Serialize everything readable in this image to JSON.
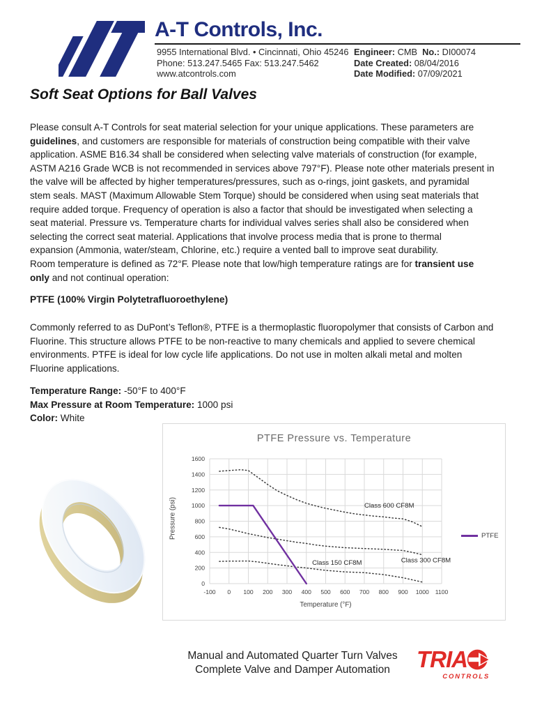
{
  "header": {
    "company": "A-T Controls, Inc.",
    "logo_color": "#1f2e7f",
    "address_lines": [
      [
        [
          "9955 International Blvd. • Cincinnati, Ohio 45246",
          0
        ]
      ],
      [
        [
          "Phone: 513.247.5465 Fax: 513.247.5462",
          0
        ]
      ],
      [
        [
          "www.atcontrols.com",
          0
        ]
      ]
    ],
    "meta_lines": [
      [
        [
          "Engineer:",
          1
        ],
        [
          " CMB  ",
          0
        ],
        [
          "No.:",
          1
        ],
        [
          " DI00074",
          0
        ]
      ],
      [
        [
          "Date Created:",
          1
        ],
        [
          " 08/04/2016",
          0
        ]
      ],
      [
        [
          "Date Modified:",
          1
        ],
        [
          " 07/09/2021",
          0
        ]
      ]
    ]
  },
  "doc": {
    "title": "Soft Seat Options for Ball Valves",
    "intro_lines": [
      [
        [
          "Please consult A-T Controls for seat material selection for your unique applications. These parameters are",
          0
        ]
      ],
      [
        [
          "guidelines",
          1
        ],
        [
          ", and customers are responsible for materials of construction being compatible with their valve",
          0
        ]
      ],
      [
        [
          "application. ASME B16.34 shall be considered when selecting valve materials of construction (for example,",
          0
        ]
      ],
      [
        [
          "ASTM A216 Grade WCB is not recommended in services above 797°F). Please note other materials present in",
          0
        ]
      ],
      [
        [
          "the valve will be affected by higher temperatures/pressures, such as o-rings, joint gaskets, and pyramidal",
          0
        ]
      ],
      [
        [
          "stem seals. MAST (Maximum Allowable Stem Torque) should be considered when using seat materials that",
          0
        ]
      ],
      [
        [
          "require added torque. Frequency of operation is also a factor that should be investigated when selecting a",
          0
        ]
      ],
      [
        [
          "seat material. Pressure vs. Temperature charts for individual valves series shall also be considered when",
          0
        ]
      ],
      [
        [
          "selecting the correct seat material. Applications that involve process media that is prone to thermal",
          0
        ]
      ],
      [
        [
          "expansion (Ammonia, water/steam, Chlorine, etc.) require a vented ball to improve seat durability.",
          0
        ]
      ],
      [
        [
          "Room temperature is defined as 72°F. Please note that low/high temperature ratings are for ",
          0
        ],
        [
          "transient use",
          1
        ]
      ],
      [
        [
          "only",
          1
        ],
        [
          " and not continual operation:",
          0
        ]
      ]
    ],
    "section_heading": "PTFE (100% Virgin Polytetrafluoroethylene)",
    "ptfe_lines": [
      [
        [
          "Commonly referred to as DuPont’s Teflon®, PTFE is a thermoplastic fluoropolymer that consists of Carbon and",
          0
        ]
      ],
      [
        [
          "Fluorine. This structure allows PTFE to be non-reactive to many chemicals and applied to severe chemical",
          0
        ]
      ],
      [
        [
          "environments. PTFE is ideal for low cycle life applications. Do not use in molten alkali metal and molten",
          0
        ]
      ],
      [
        [
          "Fluorine applications.",
          0
        ]
      ]
    ],
    "spec_lines": [
      [
        [
          "Temperature Range:",
          1
        ],
        [
          " -50°F to 400°F",
          0
        ]
      ],
      [
        [
          "Max Pressure at Room Temperature:",
          1
        ],
        [
          " 1000 psi",
          0
        ]
      ],
      [
        [
          "Color:",
          1
        ],
        [
          " White",
          0
        ]
      ]
    ]
  },
  "chart_data": {
    "type": "line",
    "title": "PTFE Pressure vs. Temperature",
    "xlabel": "Temperature (°F)",
    "ylabel": "Pressure (psi)",
    "xlim": [
      -100,
      1100
    ],
    "ylim": [
      0,
      1600
    ],
    "grid": true,
    "legend_position": "right-outside",
    "xticks": [
      -100,
      0,
      100,
      200,
      300,
      400,
      500,
      600,
      700,
      800,
      900,
      1000,
      1100
    ],
    "yticks": [
      0,
      200,
      400,
      600,
      800,
      1000,
      1200,
      1400,
      1600
    ],
    "series": [
      {
        "name": "Class 600 CF8M",
        "style": "dotted",
        "color": "#3a3a3a",
        "points": [
          [
            -50,
            1440
          ],
          [
            0,
            1450
          ],
          [
            60,
            1460
          ],
          [
            100,
            1450
          ],
          [
            150,
            1360
          ],
          [
            200,
            1270
          ],
          [
            250,
            1190
          ],
          [
            300,
            1130
          ],
          [
            350,
            1075
          ],
          [
            400,
            1030
          ],
          [
            450,
            995
          ],
          [
            500,
            965
          ],
          [
            550,
            940
          ],
          [
            600,
            915
          ],
          [
            650,
            895
          ],
          [
            700,
            880
          ],
          [
            750,
            865
          ],
          [
            800,
            855
          ],
          [
            850,
            840
          ],
          [
            900,
            830
          ],
          [
            950,
            790
          ],
          [
            1000,
            730
          ]
        ]
      },
      {
        "name": "Class 300 CF8M",
        "style": "dotted",
        "color": "#3a3a3a",
        "points": [
          [
            -50,
            720
          ],
          [
            0,
            700
          ],
          [
            50,
            670
          ],
          [
            100,
            640
          ],
          [
            150,
            615
          ],
          [
            200,
            590
          ],
          [
            250,
            570
          ],
          [
            300,
            550
          ],
          [
            350,
            530
          ],
          [
            400,
            515
          ],
          [
            450,
            495
          ],
          [
            500,
            480
          ],
          [
            550,
            470
          ],
          [
            600,
            460
          ],
          [
            700,
            450
          ],
          [
            800,
            440
          ],
          [
            900,
            425
          ],
          [
            950,
            400
          ],
          [
            1000,
            370
          ]
        ]
      },
      {
        "name": "Class 150 CF8M",
        "style": "dotted",
        "color": "#3a3a3a",
        "points": [
          [
            -50,
            285
          ],
          [
            0,
            288
          ],
          [
            100,
            290
          ],
          [
            150,
            278
          ],
          [
            200,
            260
          ],
          [
            250,
            243
          ],
          [
            300,
            228
          ],
          [
            350,
            213
          ],
          [
            400,
            200
          ],
          [
            450,
            185
          ],
          [
            500,
            170
          ],
          [
            550,
            160
          ],
          [
            600,
            150
          ],
          [
            700,
            140
          ],
          [
            800,
            115
          ],
          [
            900,
            75
          ],
          [
            1000,
            20
          ]
        ]
      },
      {
        "name": "PTFE",
        "style": "solid",
        "color": "#7030a0",
        "points": [
          [
            -50,
            1000
          ],
          [
            125,
            1000
          ],
          [
            400,
            0
          ]
        ]
      }
    ],
    "annotations": [
      {
        "text": "Class 600 CF8M",
        "x": 700,
        "y": 1000
      },
      {
        "text": "Class 150 CF8M",
        "x": 430,
        "y": 268
      },
      {
        "text": "Class 300 CF8M",
        "x": 890,
        "y": 300
      }
    ],
    "legend": {
      "label": "PTFE",
      "color": "#7030a0"
    }
  },
  "footer": {
    "line1": "Manual and Automated Quarter Turn Valves",
    "line2": "Complete Valve and Damper Automation",
    "logo_word": "TRIA",
    "logo_sub": "CONTROLS",
    "logo_color": "#e02b27"
  }
}
